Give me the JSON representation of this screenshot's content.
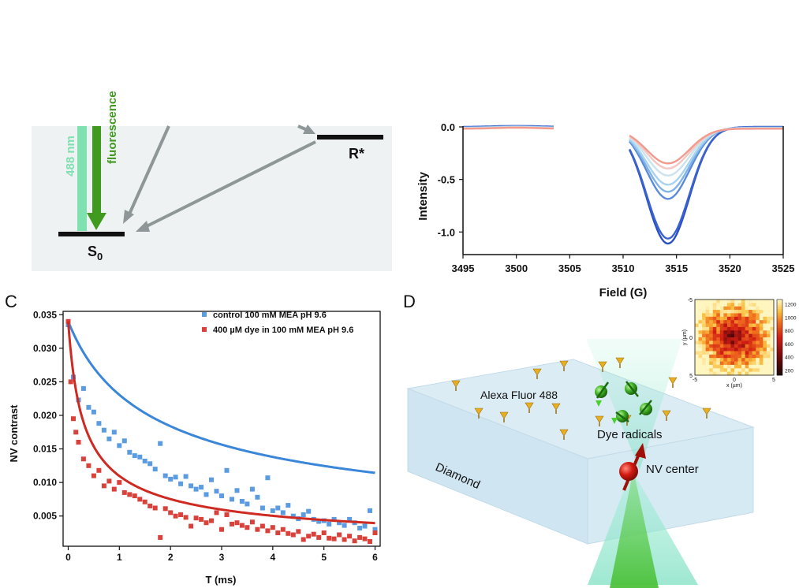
{
  "panel_a": {
    "labels": {
      "excitation": "488 nm",
      "fluorescence": "fluorescence",
      "ground_state": "S",
      "ground_sub": "0",
      "radical_state": "R*"
    }
  },
  "panel_b": {
    "chart_data": {
      "type": "line",
      "xlabel": "Field (G)",
      "ylabel": "Intensity",
      "xlim": [
        3495,
        3525
      ],
      "ylim": [
        -1.17,
        0.03
      ],
      "x_ticks": [
        3495,
        3500,
        3505,
        3510,
        3515,
        3520,
        3525
      ],
      "y_ticks": [
        0.0,
        -0.5,
        -1.0
      ],
      "x_tick_labels": [
        "3495",
        "3500",
        "3505",
        "3510",
        "3515",
        "3520",
        "3525"
      ],
      "y_tick_labels": [
        "0.0",
        "-0.5",
        "-1.0"
      ],
      "series": [
        {
          "name": "s1",
          "color": "#2a4fc4",
          "center": 3514.2,
          "amplitude": -1.11
        },
        {
          "name": "s2",
          "color": "#3b63cf",
          "center": 3514.2,
          "amplitude": -1.06
        },
        {
          "name": "s3",
          "color": "#5b8ad9",
          "center": 3514.2,
          "amplitude": -0.68
        },
        {
          "name": "s4",
          "color": "#7fb2e6",
          "center": 3514.2,
          "amplitude": -0.61
        },
        {
          "name": "s5",
          "color": "#a7d3ef",
          "center": 3514.2,
          "amplitude": -0.54
        },
        {
          "name": "s6",
          "color": "#c9e3ef",
          "center": 3514.2,
          "amplitude": -0.45
        },
        {
          "name": "s7",
          "color": "#f2c6c1",
          "center": 3514.2,
          "amplitude": -0.38
        },
        {
          "name": "s8",
          "color": "#f39a8d",
          "center": 3514.2,
          "amplitude": -0.33
        }
      ]
    }
  },
  "panel_c": {
    "label": "C",
    "chart_data": {
      "type": "scatter",
      "xlabel": "T (ms)",
      "ylabel": "NV contrast",
      "xlim": [
        -0.1,
        6.1
      ],
      "ylim": [
        0.0005,
        0.0355
      ],
      "x_ticks": [
        0,
        1,
        2,
        3,
        4,
        5,
        6
      ],
      "y_ticks": [
        0.005,
        0.01,
        0.015,
        0.02,
        0.025,
        0.03,
        0.035
      ],
      "x_tick_labels": [
        "0",
        "1",
        "2",
        "3",
        "4",
        "5",
        "6"
      ],
      "y_tick_labels": [
        "0.005",
        "0.010",
        "0.015",
        "0.020",
        "0.025",
        "0.030",
        "0.035"
      ],
      "legend_position": "top-right",
      "series": [
        {
          "name": "control 100 mM MEA pH 9.6",
          "color": "#5b9be0",
          "fit_color": "#3a86d8",
          "x": [
            0,
            0.1,
            0.2,
            0.3,
            0.4,
            0.5,
            0.6,
            0.7,
            0.8,
            0.9,
            1.0,
            1.1,
            1.2,
            1.3,
            1.4,
            1.5,
            1.6,
            1.7,
            1.8,
            1.9,
            2.0,
            2.1,
            2.2,
            2.3,
            2.4,
            2.5,
            2.6,
            2.7,
            2.8,
            2.9,
            3.0,
            3.1,
            3.2,
            3.3,
            3.4,
            3.5,
            3.6,
            3.7,
            3.8,
            3.9,
            4.0,
            4.1,
            4.2,
            4.3,
            4.4,
            4.5,
            4.6,
            4.7,
            4.8,
            4.9,
            5.0,
            5.1,
            5.2,
            5.3,
            5.4,
            5.5,
            5.6,
            5.7,
            5.8,
            5.9,
            6.0
          ],
          "y": [
            0.0335,
            0.0257,
            0.0223,
            0.024,
            0.0212,
            0.0205,
            0.0188,
            0.0178,
            0.0165,
            0.0175,
            0.0155,
            0.0162,
            0.0145,
            0.014,
            0.0138,
            0.0132,
            0.0128,
            0.012,
            0.0158,
            0.011,
            0.0105,
            0.0108,
            0.0098,
            0.0109,
            0.0095,
            0.009,
            0.0093,
            0.0082,
            0.0104,
            0.0087,
            0.008,
            0.0118,
            0.0075,
            0.0088,
            0.0072,
            0.0068,
            0.009,
            0.0078,
            0.0062,
            0.0107,
            0.0058,
            0.0062,
            0.0055,
            0.0066,
            0.005,
            0.0046,
            0.0052,
            0.0057,
            0.0045,
            0.0042,
            0.0043,
            0.0038,
            0.0045,
            0.004,
            0.0036,
            0.0045,
            0.004,
            0.0032,
            0.0035,
            0.0058,
            0.003
          ],
          "fit": {
            "c": 0.034,
            "b": 1.0,
            "p": 0.56
          }
        },
        {
          "name": "400 µM dye in 100 mM MEA pH 9.6",
          "color": "#d9423b",
          "fit_color": "#cf2a22",
          "x": [
            0,
            0.05,
            0.1,
            0.15,
            0.2,
            0.3,
            0.4,
            0.5,
            0.6,
            0.7,
            0.8,
            0.9,
            1.0,
            1.1,
            1.2,
            1.3,
            1.4,
            1.5,
            1.6,
            1.7,
            1.8,
            1.9,
            2.0,
            2.1,
            2.2,
            2.3,
            2.4,
            2.5,
            2.6,
            2.7,
            2.8,
            2.9,
            3.0,
            3.1,
            3.2,
            3.3,
            3.4,
            3.5,
            3.6,
            3.7,
            3.8,
            3.9,
            4.0,
            4.1,
            4.2,
            4.3,
            4.4,
            4.5,
            4.6,
            4.7,
            4.8,
            4.9,
            5.0,
            5.1,
            5.2,
            5.3,
            5.4,
            5.5,
            5.6,
            5.7,
            5.8,
            5.9,
            6.0
          ],
          "y": [
            0.034,
            0.025,
            0.0195,
            0.0175,
            0.016,
            0.0135,
            0.0125,
            0.011,
            0.0118,
            0.0095,
            0.0102,
            0.009,
            0.01,
            0.0085,
            0.0082,
            0.008,
            0.0075,
            0.0071,
            0.0065,
            0.0062,
            0.0018,
            0.0061,
            0.0055,
            0.005,
            0.0052,
            0.0048,
            0.0035,
            0.0047,
            0.0045,
            0.004,
            0.0043,
            0.0055,
            0.003,
            0.0052,
            0.0038,
            0.004,
            0.0036,
            0.0033,
            0.0041,
            0.003,
            0.0035,
            0.0028,
            0.0033,
            0.0025,
            0.003,
            0.0024,
            0.0022,
            0.0027,
            0.0015,
            0.002,
            0.0023,
            0.0018,
            0.0025,
            0.0017,
            0.0016,
            0.0022,
            0.0015,
            0.002,
            0.0013,
            0.0018,
            0.0016,
            0.0012,
            0.0025
          ],
          "fit": {
            "c": 0.034,
            "b": 5.2,
            "p": 0.62
          }
        }
      ]
    }
  },
  "panel_d": {
    "label": "D",
    "labels": {
      "dye": "Alexa Fluor 488",
      "radicals": "Dye radicals",
      "nv": "NV center",
      "diamond": "Diamond"
    },
    "inset": {
      "x_ticks": [
        "-5",
        "0",
        "5"
      ],
      "y_ticks": [
        "-5",
        "0",
        "5"
      ],
      "xlabel": "x (µm)",
      "ylabel": "y (µm)",
      "colorbar_ticks": [
        "1200",
        "1000",
        "800",
        "600",
        "400",
        "200"
      ]
    }
  },
  "colors": {
    "panel_a_bg": "#eef2f2",
    "laser_green": "#7fe0b0",
    "fluor_green": "#3f9a1f",
    "arrow_gray": "#8e9697"
  }
}
